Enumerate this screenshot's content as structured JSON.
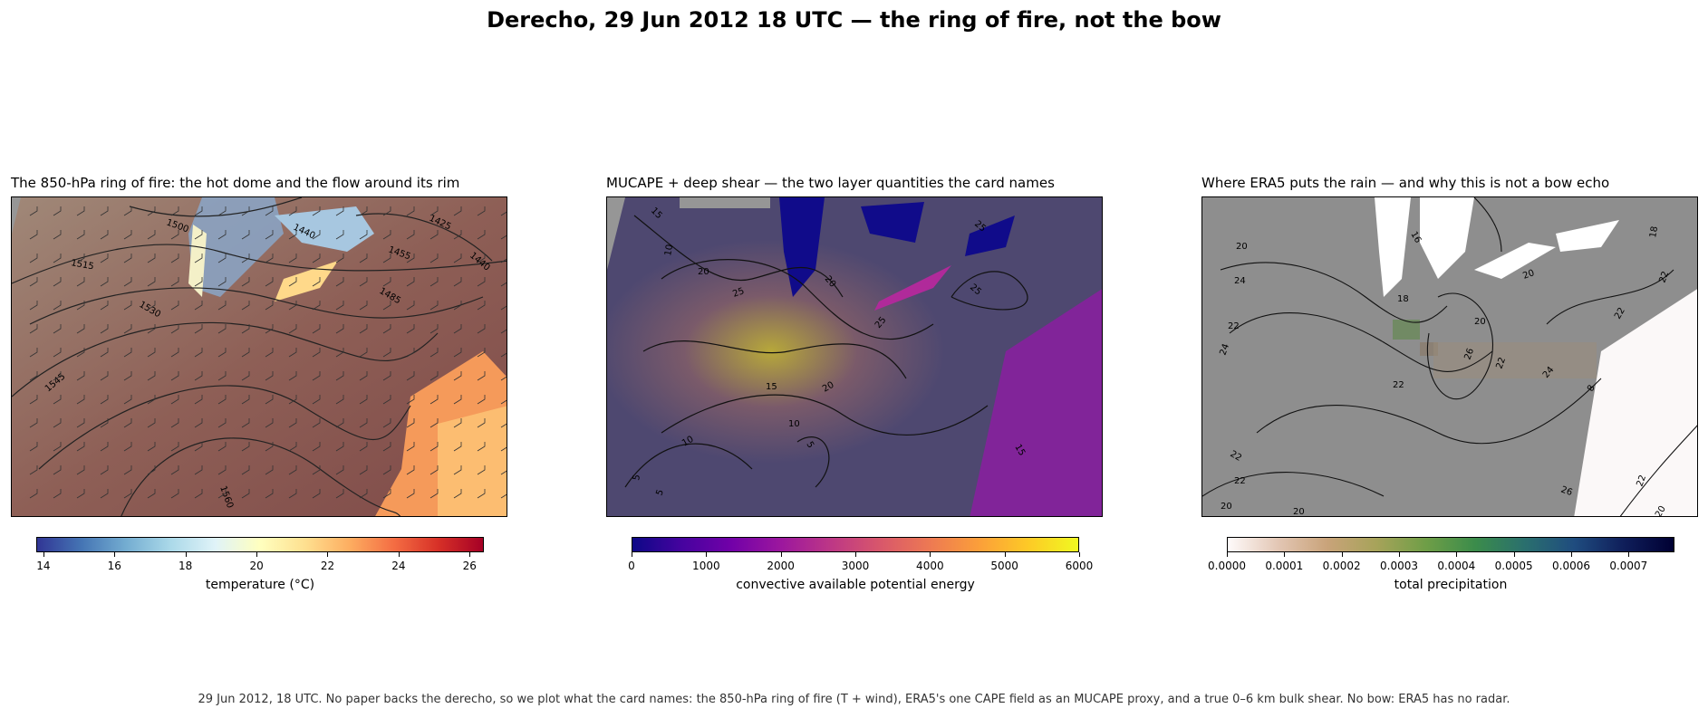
{
  "title": "Derecho, 29 Jun 2012 18 UTC — the ring of fire, not the bow",
  "caption": "29 Jun 2012, 18 UTC. No paper backs the derecho, so we plot what the card names: the 850-hPa ring of fire (T + wind), ERA5's one CAPE field as an MUCAPE proxy, and a true 0–6 km bulk shear. No bow: ERA5 has no radar.",
  "panels": [
    {
      "title": "The 850-hPa ring of fire: the hot dome and the flow around its rim",
      "colorbar": {
        "label": "temperature (°C)",
        "ticks": [
          "14",
          "16",
          "18",
          "20",
          "22",
          "24",
          "26"
        ],
        "range": [
          13.8,
          26.4
        ],
        "colormap": [
          "#313695",
          "#4575b4",
          "#74add1",
          "#abd9e9",
          "#e0f3f8",
          "#ffffbf",
          "#fee090",
          "#fdae61",
          "#f46d43",
          "#d73027",
          "#a50026"
        ]
      },
      "contour_labels": [
        "1500",
        "1440",
        "1425",
        "1515",
        "1455",
        "1440",
        "1485",
        "1530",
        "1545",
        "1560"
      ]
    },
    {
      "title": "MUCAPE + deep shear — the two layer quantities the card names",
      "colorbar": {
        "label": "convective available potential energy",
        "ticks": [
          "0",
          "1000",
          "2000",
          "3000",
          "4000",
          "5000",
          "6000"
        ],
        "range": [
          0,
          6000
        ],
        "colormap": [
          "#0d0887",
          "#46039f",
          "#7201a8",
          "#9c179e",
          "#bd3786",
          "#d8576b",
          "#ed7953",
          "#fb9f3a",
          "#fdca26",
          "#f0f921"
        ]
      },
      "contour_labels": [
        "15",
        "10",
        "20",
        "25",
        "20",
        "25",
        "25",
        "15",
        "20",
        "10",
        "10",
        "5",
        "5",
        "15",
        "5",
        "25"
      ]
    },
    {
      "title": "Where ERA5 puts the rain — and why this is not a bow echo",
      "colorbar": {
        "label": "total precipitation",
        "ticks": [
          "0.0000",
          "0.0001",
          "0.0002",
          "0.0003",
          "0.0004",
          "0.0005",
          "0.0006",
          "0.0007"
        ],
        "range": [
          0,
          0.00078
        ],
        "colormap": [
          "#fffbfb",
          "#e3c7b5",
          "#c9a37a",
          "#a7a35a",
          "#6f9e47",
          "#3b8c4b",
          "#2a6f6e",
          "#1f4c7f",
          "#0f1e5a",
          "#000033"
        ]
      },
      "contour_labels": [
        "20",
        "16",
        "18",
        "24",
        "18",
        "20",
        "22",
        "24",
        "20",
        "22",
        "26",
        "22",
        "24",
        "22",
        "8",
        "22",
        "22",
        "22",
        "26",
        "20",
        "20",
        "22",
        "20"
      ]
    }
  ]
}
